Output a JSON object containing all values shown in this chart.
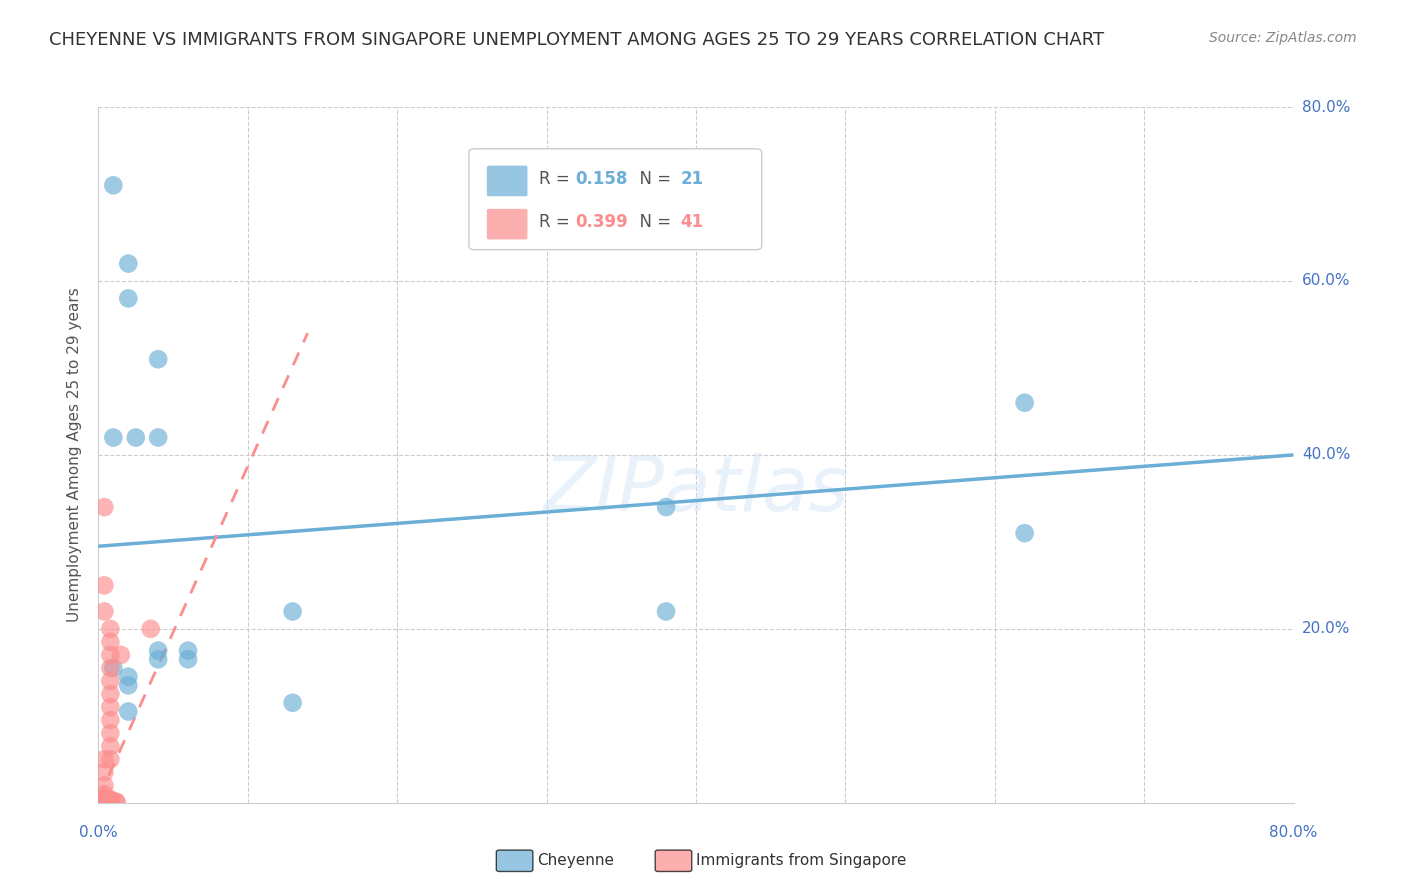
{
  "title": "CHEYENNE VS IMMIGRANTS FROM SINGAPORE UNEMPLOYMENT AMONG AGES 25 TO 29 YEARS CORRELATION CHART",
  "source": "Source: ZipAtlas.com",
  "ylabel": "Unemployment Among Ages 25 to 29 years",
  "watermark": "ZIPatlas",
  "xlim": [
    0.0,
    0.8
  ],
  "ylim": [
    0.0,
    0.8
  ],
  "cheyenne_color": "#6baed6",
  "singapore_color": "#fc8d8d",
  "cheyenne_R": 0.158,
  "cheyenne_N": 21,
  "singapore_R": 0.399,
  "singapore_N": 41,
  "cheyenne_scatter": [
    [
      0.01,
      0.71
    ],
    [
      0.02,
      0.62
    ],
    [
      0.02,
      0.58
    ],
    [
      0.04,
      0.51
    ],
    [
      0.025,
      0.42
    ],
    [
      0.04,
      0.42
    ],
    [
      0.01,
      0.42
    ],
    [
      0.38,
      0.34
    ],
    [
      0.04,
      0.175
    ],
    [
      0.04,
      0.165
    ],
    [
      0.06,
      0.175
    ],
    [
      0.06,
      0.165
    ],
    [
      0.01,
      0.155
    ],
    [
      0.02,
      0.145
    ],
    [
      0.02,
      0.135
    ],
    [
      0.13,
      0.22
    ],
    [
      0.38,
      0.22
    ],
    [
      0.13,
      0.115
    ],
    [
      0.02,
      0.105
    ],
    [
      0.62,
      0.46
    ],
    [
      0.62,
      0.31
    ]
  ],
  "singapore_scatter": [
    [
      0.004,
      0.34
    ],
    [
      0.004,
      0.25
    ],
    [
      0.004,
      0.22
    ],
    [
      0.008,
      0.2
    ],
    [
      0.008,
      0.185
    ],
    [
      0.008,
      0.17
    ],
    [
      0.008,
      0.155
    ],
    [
      0.008,
      0.14
    ],
    [
      0.008,
      0.125
    ],
    [
      0.008,
      0.11
    ],
    [
      0.008,
      0.095
    ],
    [
      0.008,
      0.08
    ],
    [
      0.008,
      0.065
    ],
    [
      0.008,
      0.05
    ],
    [
      0.004,
      0.05
    ],
    [
      0.004,
      0.035
    ],
    [
      0.004,
      0.02
    ],
    [
      0.004,
      0.01
    ],
    [
      0.004,
      0.005
    ],
    [
      0.004,
      0.004
    ],
    [
      0.004,
      0.003
    ],
    [
      0.008,
      0.004
    ],
    [
      0.008,
      0.003
    ],
    [
      0.008,
      0.002
    ],
    [
      0.008,
      0.001
    ],
    [
      0.008,
      0.001
    ],
    [
      0.008,
      0.001
    ],
    [
      0.008,
      0.001
    ],
    [
      0.008,
      0.001
    ],
    [
      0.008,
      0.001
    ],
    [
      0.008,
      0.001
    ],
    [
      0.008,
      0.001
    ],
    [
      0.008,
      0.001
    ],
    [
      0.012,
      0.001
    ],
    [
      0.012,
      0.001
    ],
    [
      0.004,
      0.001
    ],
    [
      0.004,
      0.001
    ],
    [
      0.015,
      0.17
    ],
    [
      0.035,
      0.2
    ],
    [
      0.004,
      0.002
    ],
    [
      0.004,
      0.001
    ]
  ],
  "cheyenne_line_x": [
    0.0,
    0.8
  ],
  "cheyenne_line_y": [
    0.295,
    0.4
  ],
  "singapore_line_x": [
    0.0,
    0.14
  ],
  "singapore_line_y": [
    0.005,
    0.54
  ],
  "background_color": "#ffffff",
  "grid_color": "#cccccc",
  "title_fontsize": 13,
  "tick_fontsize": 11,
  "label_color": "#4472C4",
  "text_color": "#333333",
  "source_color": "#888888"
}
